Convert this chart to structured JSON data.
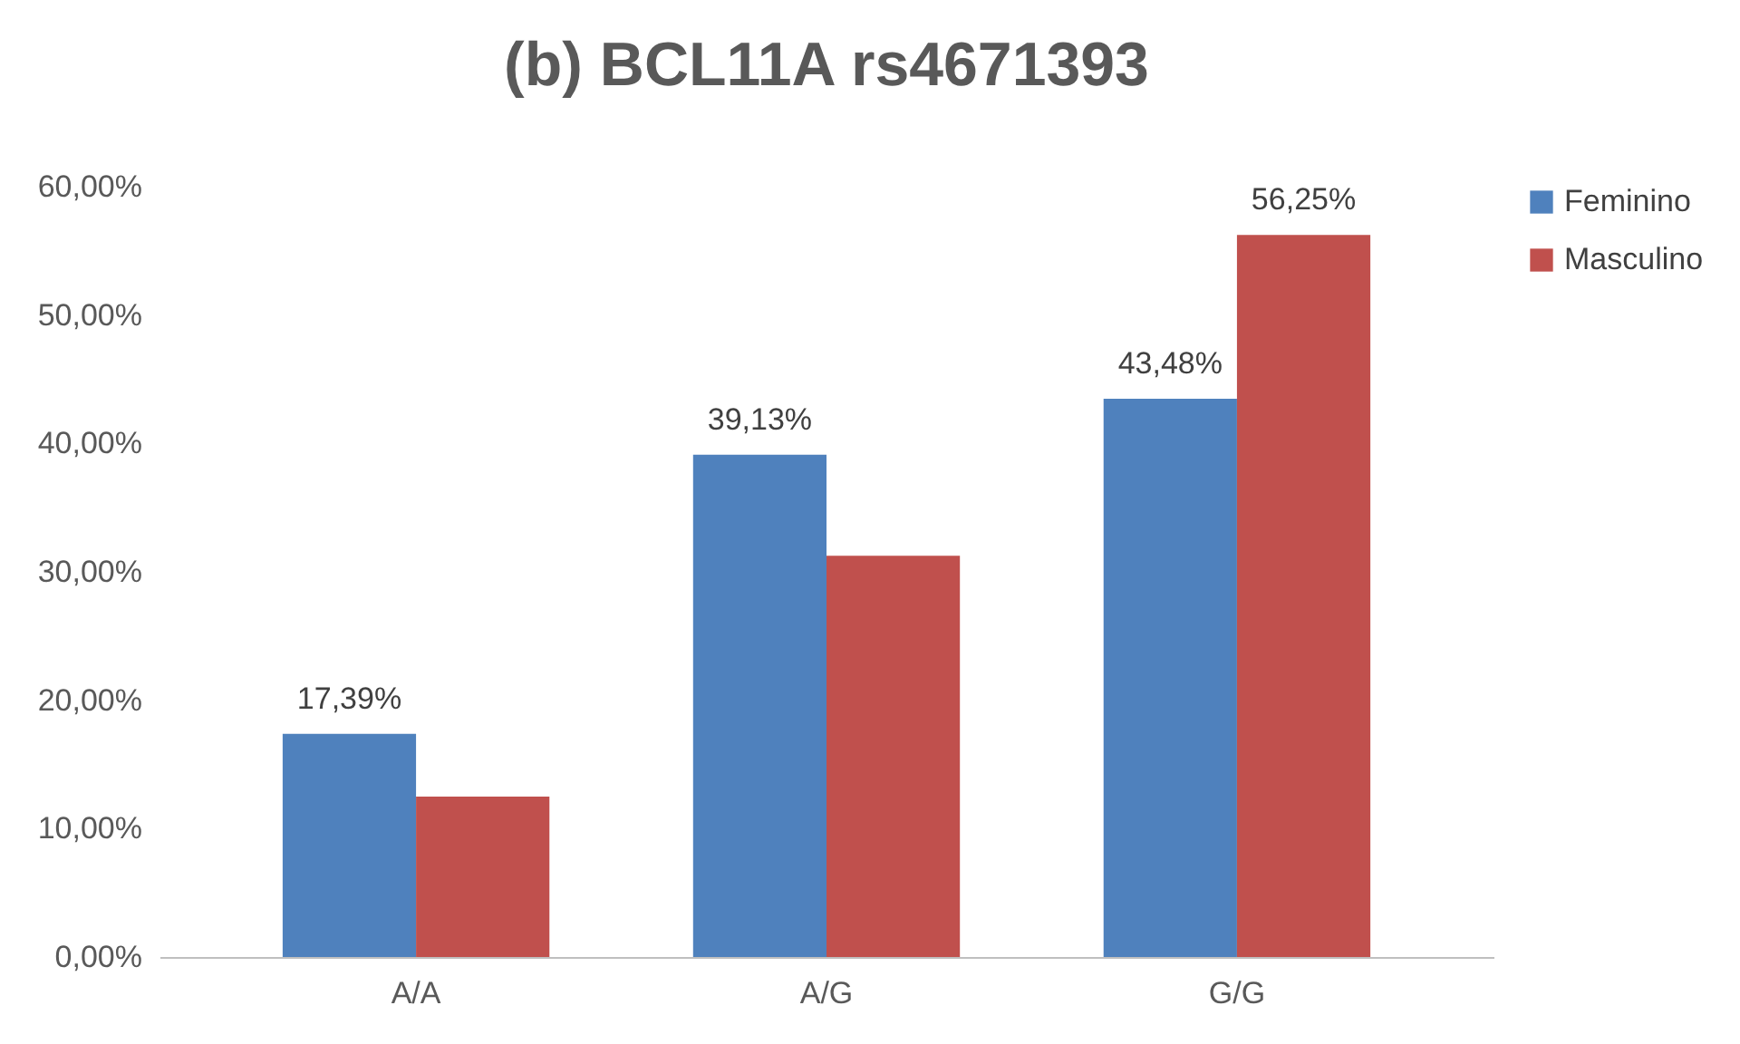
{
  "chart_data": {
    "type": "bar",
    "title": "(b) BCL11A rs4671393",
    "categories": [
      "A/A",
      "A/G",
      "G/G"
    ],
    "series": [
      {
        "name": "Feminino",
        "color": "#4f81bd",
        "values": [
          17.39,
          39.13,
          43.48
        ],
        "value_labels": [
          "17,39%",
          "39,13%",
          "43,48%"
        ]
      },
      {
        "name": "Masculino",
        "color": "#c0504d",
        "values": [
          12.5,
          31.25,
          56.25
        ],
        "value_labels": [
          null,
          null,
          "56,25%"
        ]
      }
    ],
    "ylim": [
      0,
      60
    ],
    "yticks": [
      {
        "value": 0,
        "label": "0,00%"
      },
      {
        "value": 10,
        "label": "10,00%"
      },
      {
        "value": 20,
        "label": "20,00%"
      },
      {
        "value": 30,
        "label": "30,00%"
      },
      {
        "value": 40,
        "label": "40,00%"
      },
      {
        "value": 50,
        "label": "50,00%"
      },
      {
        "value": 60,
        "label": "60,00%"
      }
    ],
    "grid": false,
    "legend": "right"
  }
}
